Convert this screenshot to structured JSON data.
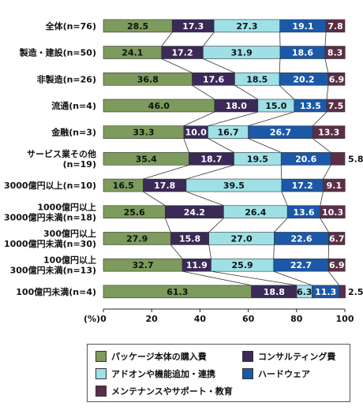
{
  "chart_data": {
    "type": "bar",
    "stacked": true,
    "orientation": "horizontal",
    "categories": [
      [
        "全体(n=76)"
      ],
      [
        "製造・建設(n=50)"
      ],
      [
        "非製造(n=26)"
      ],
      [
        "流通(n=4)"
      ],
      [
        "金融(n=3)"
      ],
      [
        "サービス業その他",
        "(n=19)"
      ],
      [
        "3000億円以上(n=10)"
      ],
      [
        "1000億円以上",
        "3000億円未満(n=18)"
      ],
      [
        "300億円以上",
        "1000億円未満(n=30)"
      ],
      [
        "100億円以上",
        "300億円未満(n=13)"
      ],
      [
        "100億円未満(n=4)"
      ]
    ],
    "series": [
      {
        "name": "パッケージ本体の購入費",
        "color": "#7c9b5c",
        "text_color": "#111111",
        "values": [
          28.5,
          24.1,
          36.8,
          46.0,
          33.3,
          35.4,
          16.5,
          25.6,
          27.9,
          32.7,
          61.3
        ],
        "labels": [
          "28.5",
          "24.1",
          "36.8",
          "46.0",
          "33.3",
          "35.4",
          "16.5",
          "25.6",
          "27.9",
          "32.7",
          "61.3"
        ]
      },
      {
        "name": "コンサルティング費",
        "color": "#3b2a57",
        "text_color": "#ffffff",
        "values": [
          17.3,
          17.2,
          17.6,
          18.0,
          10.0,
          18.7,
          17.8,
          24.2,
          15.8,
          11.9,
          18.8
        ],
        "labels": [
          "17.3",
          "17.2",
          "17.6",
          "18.0",
          "10.0",
          "18.7",
          "17.8",
          "24.2",
          "15.8",
          "11.9",
          "18.8"
        ]
      },
      {
        "name": "アドオンや機能追加・連携",
        "color": "#9ee0e6",
        "text_color": "#111111",
        "values": [
          27.3,
          31.9,
          18.5,
          15.0,
          16.7,
          19.5,
          39.5,
          26.4,
          27.0,
          25.9,
          6.3
        ],
        "labels": [
          "27.3",
          "31.9",
          "18.5",
          "15.0",
          "16.7",
          "19.5",
          "39.5",
          "26.4",
          "27.0",
          "25.9",
          "6.3"
        ]
      },
      {
        "name": "ハードウェア",
        "color": "#1c58a8",
        "text_color": "#ffffff",
        "values": [
          19.1,
          18.6,
          20.2,
          13.5,
          26.7,
          20.6,
          17.2,
          13.6,
          22.6,
          22.7,
          11.3
        ],
        "labels": [
          "19.1",
          "18.6",
          "20.2",
          "13.5",
          "26.7",
          "20.6",
          "17.2",
          "13.6",
          "22.6",
          "22.7",
          "11.3"
        ]
      },
      {
        "name": "メンテナンスやサポート・教育",
        "color": "#5a2f47",
        "text_color": "#ffffff",
        "values": [
          7.8,
          8.3,
          6.9,
          7.5,
          13.3,
          5.8,
          9.1,
          10.3,
          6.7,
          6.9,
          2.5
        ],
        "labels": [
          "7.8",
          "8.3",
          "6.9",
          "7.5",
          "13.3",
          "5.8",
          "9.1",
          "10.3",
          "6.7",
          "6.9",
          "2.5"
        ]
      }
    ],
    "outside_labels": [
      {
        "row": 5,
        "series": 4,
        "text": "5.8"
      },
      {
        "row": 10,
        "series": 4,
        "text": "2.5"
      }
    ],
    "axis_unit": "(%)",
    "xlim": [
      0,
      100
    ],
    "xticks": [
      "0",
      "20",
      "40",
      "60",
      "80",
      "100"
    ],
    "xtick_values": [
      0,
      20,
      40,
      60,
      80,
      100
    ],
    "connector_lines": true,
    "grid": false,
    "legend_position": "bottom",
    "legend_columns": [
      [
        0,
        2,
        4
      ],
      [
        1,
        3
      ]
    ]
  }
}
